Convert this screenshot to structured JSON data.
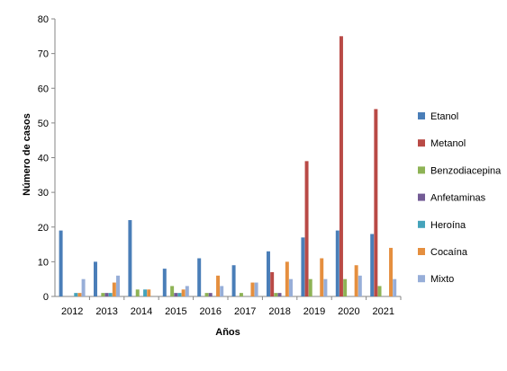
{
  "chart_data": {
    "type": "bar",
    "title": "",
    "xlabel": "Años",
    "ylabel": "Número de casos",
    "ylim": [
      0,
      80
    ],
    "yticks": [
      0,
      10,
      20,
      30,
      40,
      50,
      60,
      70,
      80
    ],
    "grid": false,
    "legend_position": "right",
    "categories": [
      "2012",
      "2013",
      "2014",
      "2015",
      "2016",
      "2017",
      "2018",
      "2019",
      "2020",
      "2021"
    ],
    "series": [
      {
        "name": "Etanol",
        "color": "#4a7eb8",
        "values": [
          19,
          10,
          22,
          8,
          11,
          9,
          13,
          17,
          19,
          18
        ]
      },
      {
        "name": "Metanol",
        "color": "#b94a46",
        "values": [
          0,
          0,
          0,
          0,
          0,
          0,
          7,
          39,
          75,
          54
        ]
      },
      {
        "name": "Benzodiacepina",
        "color": "#8eb355",
        "values": [
          0,
          1,
          2,
          3,
          1,
          1,
          1,
          5,
          5,
          3
        ]
      },
      {
        "name": "Anfetaminas",
        "color": "#735b95",
        "values": [
          0,
          1,
          0,
          1,
          1,
          0,
          1,
          0,
          0,
          0
        ]
      },
      {
        "name": "Heroína",
        "color": "#45a3bb",
        "values": [
          1,
          1,
          2,
          1,
          0,
          0,
          0,
          0,
          0,
          0
        ]
      },
      {
        "name": "Cocaína",
        "color": "#e58f3f",
        "values": [
          1,
          4,
          2,
          2,
          6,
          4,
          10,
          11,
          9,
          14
        ]
      },
      {
        "name": "Mixto",
        "color": "#97aed8",
        "values": [
          5,
          6,
          0,
          3,
          3,
          4,
          5,
          5,
          6,
          5
        ]
      }
    ]
  }
}
